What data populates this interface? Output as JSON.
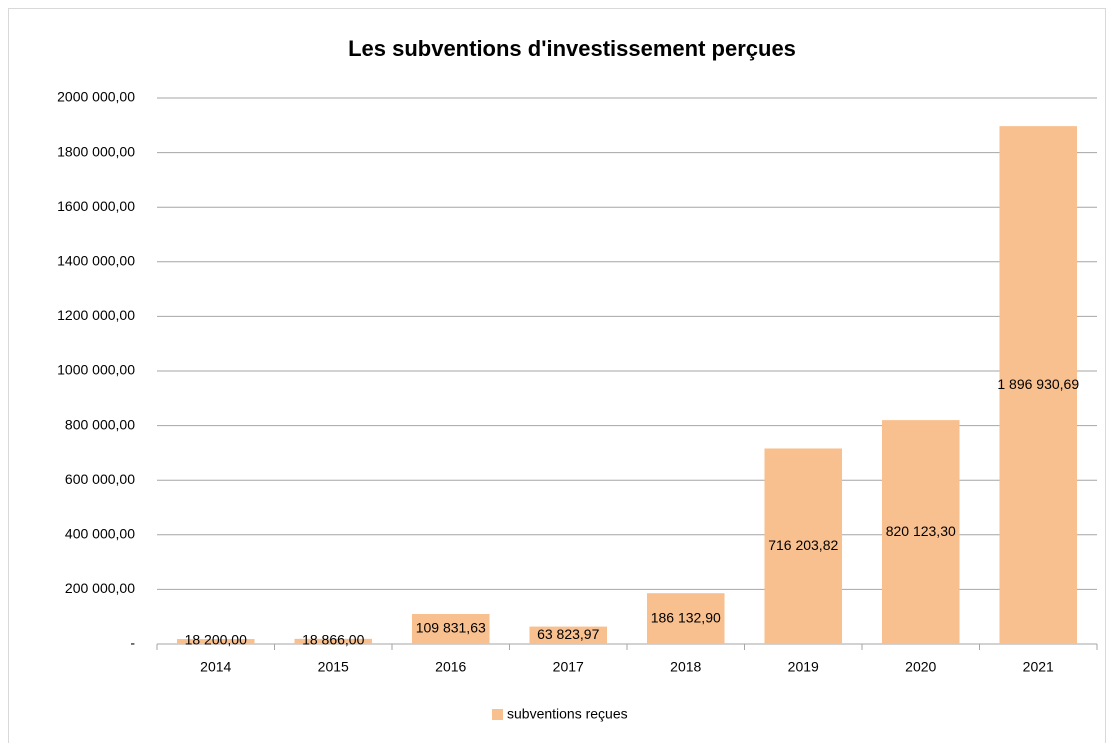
{
  "chart_data": {
    "type": "bar",
    "title": "Les subventions d'investissement perçues",
    "categories": [
      "2014",
      "2015",
      "2016",
      "2017",
      "2018",
      "2019",
      "2020",
      "2021"
    ],
    "series": [
      {
        "name": "subventions reçues",
        "color": "#f9c08f",
        "values": [
          18200,
          18866,
          109831.63,
          63823.97,
          186132.9,
          716203.82,
          820123.3,
          1896930.69
        ],
        "value_labels": [
          "18 200,00",
          "18 866,00",
          "109 831,63",
          "63 823,97",
          "186 132,90",
          "716 203,82",
          "820 123,30",
          "1 896 930,69"
        ]
      }
    ],
    "ylim": [
      0,
      2000000
    ],
    "yticks": [
      {
        "value": 0,
        "label": "-"
      },
      {
        "value": 200000,
        "label": "200 000,00"
      },
      {
        "value": 400000,
        "label": "400 000,00"
      },
      {
        "value": 600000,
        "label": "600 000,00"
      },
      {
        "value": 800000,
        "label": "800 000,00"
      },
      {
        "value": 1000000,
        "label": "1000 000,00"
      },
      {
        "value": 1200000,
        "label": "1200 000,00"
      },
      {
        "value": 1400000,
        "label": "1400 000,00"
      },
      {
        "value": 1600000,
        "label": "1600 000,00"
      },
      {
        "value": 1800000,
        "label": "1800 000,00"
      },
      {
        "value": 2000000,
        "label": "2000 000,00"
      }
    ],
    "grid": true,
    "legend": "bottom"
  }
}
